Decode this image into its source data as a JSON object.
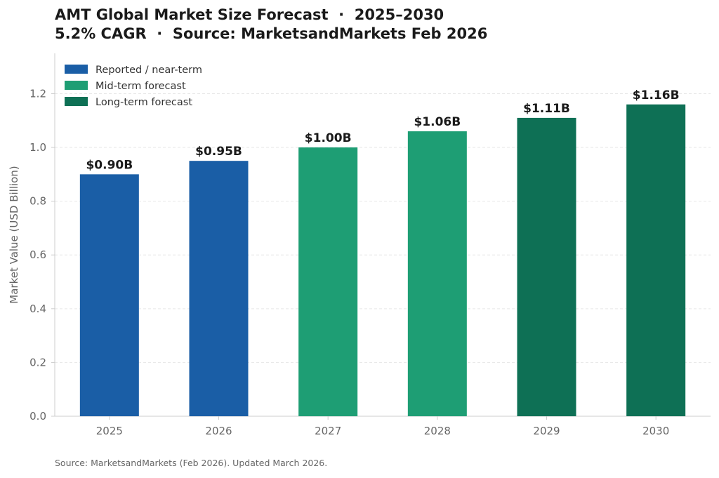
{
  "title_line1": "AMT Global Market Size Forecast  ·  2025–2030",
  "title_line2": "5.2% CAGR  ·  Source: MarketsandMarkets Feb 2026",
  "footer": "Source: MarketsandMarkets (Feb 2026). Updated March 2026.",
  "colors": {
    "reported": "#1a5ea6",
    "mid_term": "#1e9e74",
    "long_term": "#0e7055",
    "grid": "#e6e6e6",
    "axis": "#cccccc",
    "tick_text": "#666666",
    "label_text": "#1a1a1a"
  },
  "chart_data": {
    "type": "bar",
    "categories": [
      "2025",
      "2026",
      "2027",
      "2028",
      "2029",
      "2030"
    ],
    "values": [
      0.9,
      0.95,
      1.0,
      1.06,
      1.11,
      1.16
    ],
    "data_labels": [
      "$0.90B",
      "$0.95B",
      "$1.00B",
      "$1.06B",
      "$1.11B",
      "$1.16B"
    ],
    "bar_groups": [
      "reported",
      "reported",
      "mid_term",
      "mid_term",
      "long_term",
      "long_term"
    ],
    "ylabel": "Market Value (USD Billion)",
    "xlabel": "",
    "ylim": [
      0,
      1.35
    ],
    "yticks": [
      0.0,
      0.2,
      0.4,
      0.6,
      0.8,
      1.0,
      1.2
    ],
    "ytick_labels": [
      "0.0",
      "0.2",
      "0.4",
      "0.6",
      "0.8",
      "1.0",
      "1.2"
    ],
    "grid": true,
    "legend_position": "top-left",
    "legend": [
      {
        "key": "reported",
        "label": "Reported / near-term"
      },
      {
        "key": "mid_term",
        "label": "Mid-term forecast"
      },
      {
        "key": "long_term",
        "label": "Long-term forecast"
      }
    ]
  }
}
